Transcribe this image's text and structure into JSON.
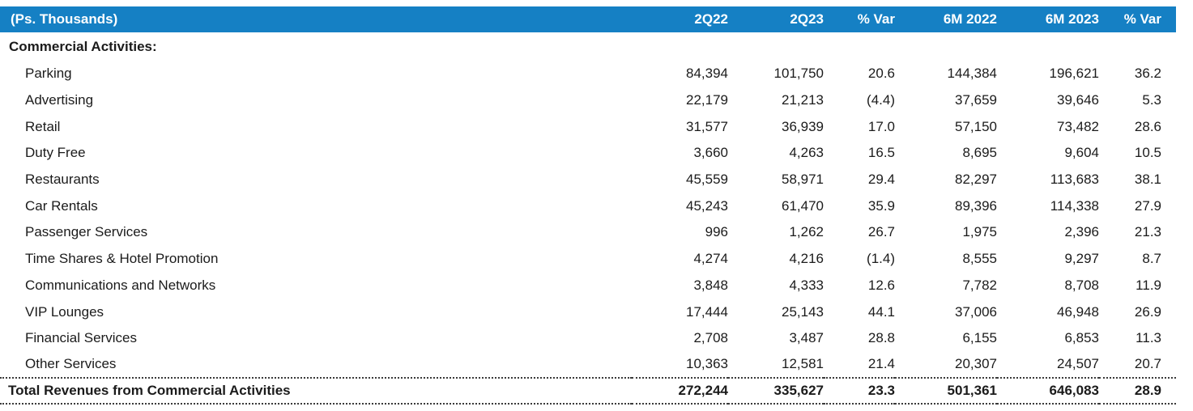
{
  "colors": {
    "header_bg": "#1580C4",
    "header_text": "#FFFFFF",
    "body_text": "#1B1B1B",
    "rule_color": "#3A3A3A"
  },
  "table": {
    "unit_label": "(Ps. Thousands)",
    "columns": [
      "2Q22",
      "2Q23",
      "% Var",
      "6M 2022",
      "6M 2023",
      "% Var"
    ],
    "section_header": "Commercial Activities:",
    "rows": [
      {
        "label": "Parking",
        "values": [
          "84,394",
          "101,750",
          "20.6",
          "144,384",
          "196,621",
          "36.2"
        ]
      },
      {
        "label": "Advertising",
        "values": [
          "22,179",
          "21,213",
          "(4.4)",
          "37,659",
          "39,646",
          "5.3"
        ]
      },
      {
        "label": "Retail",
        "values": [
          "31,577",
          "36,939",
          "17.0",
          "57,150",
          "73,482",
          "28.6"
        ]
      },
      {
        "label": "Duty Free",
        "values": [
          "3,660",
          "4,263",
          "16.5",
          "8,695",
          "9,604",
          "10.5"
        ]
      },
      {
        "label": "Restaurants",
        "values": [
          "45,559",
          "58,971",
          "29.4",
          "82,297",
          "113,683",
          "38.1"
        ]
      },
      {
        "label": "Car Rentals",
        "values": [
          "45,243",
          "61,470",
          "35.9",
          "89,396",
          "114,338",
          "27.9"
        ]
      },
      {
        "label": "Passenger Services",
        "values": [
          "996",
          "1,262",
          "26.7",
          "1,975",
          "2,396",
          "21.3"
        ]
      },
      {
        "label": "Time Shares & Hotel Promotion",
        "values": [
          "4,274",
          "4,216",
          "(1.4)",
          "8,555",
          "9,297",
          "8.7"
        ]
      },
      {
        "label": "Communications and Networks",
        "values": [
          "3,848",
          "4,333",
          "12.6",
          "7,782",
          "8,708",
          "11.9"
        ]
      },
      {
        "label": "VIP Lounges",
        "values": [
          "17,444",
          "25,143",
          "44.1",
          "37,006",
          "46,948",
          "26.9"
        ]
      },
      {
        "label": "Financial Services",
        "values": [
          "2,708",
          "3,487",
          "28.8",
          "6,155",
          "6,853",
          "11.3"
        ]
      },
      {
        "label": "Other Services",
        "values": [
          "10,363",
          "12,581",
          "21.4",
          "20,307",
          "24,507",
          "20.7"
        ]
      }
    ],
    "total": {
      "label": "Total Revenues from Commercial Activities",
      "values": [
        "272,244",
        "335,627",
        "23.3",
        "501,361",
        "646,083",
        "28.9"
      ]
    }
  }
}
